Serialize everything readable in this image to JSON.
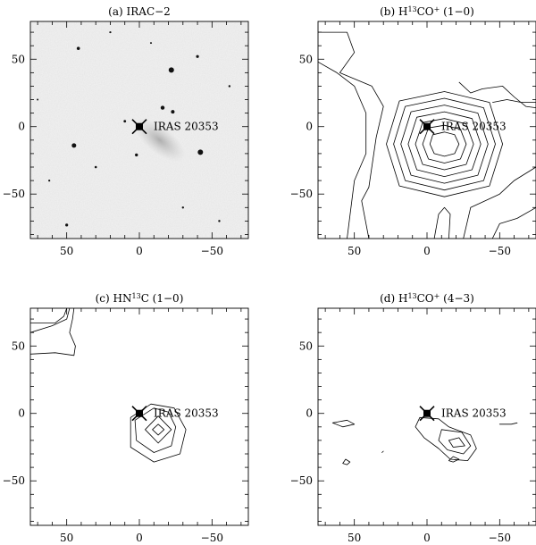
{
  "chart_data": [
    {
      "type": "image",
      "title": "(a) IRAC−2",
      "xlim": [
        75,
        -75
      ],
      "ylim": [
        -83,
        78
      ],
      "xticks": [
        "50",
        "0",
        "−50"
      ],
      "yticks": [
        "50",
        "0",
        "−50"
      ],
      "source": {
        "label": "IRAS 20353",
        "x": 0,
        "y": 0
      },
      "stars": [
        {
          "x": 45,
          "y": -14,
          "r": 2.5
        },
        {
          "x": -22,
          "y": 42,
          "r": 3
        },
        {
          "x": -42,
          "y": -19,
          "r": 3
        },
        {
          "x": -16,
          "y": 14,
          "r": 2.2
        },
        {
          "x": -23,
          "y": 11,
          "r": 2
        },
        {
          "x": -40,
          "y": 52,
          "r": 1.6
        },
        {
          "x": 50,
          "y": -73,
          "r": 1.6
        },
        {
          "x": 2,
          "y": -21,
          "r": 1.7
        },
        {
          "x": 42,
          "y": 58,
          "r": 1.8
        },
        {
          "x": 30,
          "y": -30,
          "r": 1.3
        },
        {
          "x": 10,
          "y": 4,
          "r": 1.4
        },
        {
          "x": -62,
          "y": 30,
          "r": 1.2
        },
        {
          "x": 62,
          "y": -40,
          "r": 1.1
        },
        {
          "x": -30,
          "y": -60,
          "r": 1.2
        },
        {
          "x": 20,
          "y": 70,
          "r": 1.1
        },
        {
          "x": -55,
          "y": -70,
          "r": 1.2
        },
        {
          "x": 70,
          "y": 20,
          "r": 1.0
        },
        {
          "x": -8,
          "y": 62,
          "r": 1.0
        }
      ]
    },
    {
      "type": "contour",
      "title": "(b) H{13}CO{+} (1−0)",
      "xlim": [
        75,
        -75
      ],
      "ylim": [
        -83,
        78
      ],
      "xticks": [
        "50",
        "0",
        "−50"
      ],
      "yticks": [
        "50",
        "0",
        "−50"
      ],
      "source": {
        "label": "IRAS 20353",
        "x": 0,
        "y": 0
      },
      "peak": {
        "x": -12,
        "y": -13
      },
      "contours": [
        [
          [
            -12,
            -4
          ],
          [
            -4,
            -6
          ],
          [
            -2,
            -13
          ],
          [
            -5,
            -20
          ],
          [
            -12,
            -22
          ],
          [
            -19,
            -20
          ],
          [
            -22,
            -13
          ],
          [
            -19,
            -6
          ]
        ],
        [
          [
            -12,
            1
          ],
          [
            -1,
            -1
          ],
          [
            3,
            -13
          ],
          [
            -1,
            -24
          ],
          [
            -12,
            -27
          ],
          [
            -23,
            -24
          ],
          [
            -27,
            -13
          ],
          [
            -23,
            -2
          ]
        ],
        [
          [
            -12,
            6
          ],
          [
            3,
            3
          ],
          [
            8,
            -13
          ],
          [
            3,
            -28
          ],
          [
            -12,
            -32
          ],
          [
            -27,
            -28
          ],
          [
            -32,
            -13
          ],
          [
            -27,
            2
          ]
        ],
        [
          [
            -12,
            11
          ],
          [
            7,
            7
          ],
          [
            13,
            -13
          ],
          [
            7,
            -32
          ],
          [
            -12,
            -37
          ],
          [
            -31,
            -32
          ],
          [
            -37,
            -13
          ],
          [
            -31,
            6
          ]
        ],
        [
          [
            -12,
            16
          ],
          [
            11,
            11
          ],
          [
            18,
            -13
          ],
          [
            11,
            -36
          ],
          [
            -12,
            -42
          ],
          [
            -35,
            -36
          ],
          [
            -42,
            -13
          ],
          [
            -35,
            10
          ]
        ],
        [
          [
            -12,
            21
          ],
          [
            15,
            15
          ],
          [
            23,
            -13
          ],
          [
            15,
            -40
          ],
          [
            -12,
            -47
          ],
          [
            -39,
            -40
          ],
          [
            -47,
            -13
          ],
          [
            -39,
            14
          ]
        ],
        [
          [
            -12,
            26
          ],
          [
            19,
            19
          ],
          [
            28,
            -13
          ],
          [
            19,
            -44
          ],
          [
            -12,
            -52
          ],
          [
            -43,
            -44
          ],
          [
            -52,
            -13
          ],
          [
            -43,
            18
          ]
        ],
        [
          [
            75,
            70
          ],
          [
            55,
            70
          ],
          [
            50,
            55
          ],
          [
            60,
            40
          ],
          [
            38,
            30
          ],
          [
            30,
            15
          ],
          [
            35,
            -8
          ],
          [
            40,
            -45
          ],
          [
            45,
            -55
          ],
          [
            40,
            -83
          ]
        ],
        [
          [
            75,
            48
          ],
          [
            62,
            40
          ],
          [
            50,
            30
          ],
          [
            42,
            10
          ],
          [
            42,
            -20
          ],
          [
            50,
            -40
          ],
          [
            55,
            -83
          ]
        ],
        [
          [
            -75,
            -30
          ],
          [
            -60,
            -40
          ],
          [
            -50,
            -50
          ],
          [
            -40,
            -55
          ],
          [
            -30,
            -60
          ],
          [
            -25,
            -83
          ]
        ],
        [
          [
            -75,
            -60
          ],
          [
            -62,
            -68
          ],
          [
            -50,
            -72
          ],
          [
            -45,
            -83
          ]
        ],
        [
          [
            -5,
            -83
          ],
          [
            -8,
            -65
          ],
          [
            -12,
            -60
          ],
          [
            -16,
            -65
          ],
          [
            -15,
            -83
          ]
        ],
        [
          [
            -22,
            33
          ],
          [
            -30,
            25
          ],
          [
            -38,
            28
          ],
          [
            -52,
            30
          ],
          [
            -60,
            22
          ],
          [
            -68,
            15
          ],
          [
            -75,
            14
          ]
        ],
        [
          [
            -45,
            18
          ],
          [
            -55,
            20
          ],
          [
            -65,
            18
          ],
          [
            -75,
            18
          ]
        ]
      ]
    },
    {
      "type": "contour",
      "title": "(c) HN{13}C (1−0)",
      "xlim": [
        75,
        -75
      ],
      "ylim": [
        -83,
        78
      ],
      "xticks": [
        "50",
        "0",
        "−50"
      ],
      "yticks": [
        "50",
        "0",
        "−50"
      ],
      "source": {
        "label": "IRAS 20353",
        "x": 0,
        "y": 0
      },
      "peak": {
        "x": -13,
        "y": -12
      },
      "contours": [
        [
          [
            -13,
            -8
          ],
          [
            -9,
            -12
          ],
          [
            -13,
            -16
          ],
          [
            -17,
            -12
          ]
        ],
        [
          [
            -13,
            -2
          ],
          [
            -4,
            -12
          ],
          [
            -13,
            -22
          ],
          [
            -22,
            -12
          ]
        ],
        [
          [
            -10,
            4
          ],
          [
            3,
            -5
          ],
          [
            2,
            -20
          ],
          [
            -10,
            -29
          ],
          [
            -22,
            -24
          ],
          [
            -25,
            -10
          ],
          [
            -20,
            1
          ]
        ],
        [
          [
            -8,
            7
          ],
          [
            6,
            -3
          ],
          [
            6,
            -25
          ],
          [
            -10,
            -36
          ],
          [
            -28,
            -30
          ],
          [
            -32,
            -12
          ],
          [
            -24,
            4
          ]
        ],
        [
          [
            75,
            60
          ],
          [
            60,
            65
          ],
          [
            50,
            70
          ],
          [
            48,
            78
          ]
        ],
        [
          [
            75,
            44
          ],
          [
            58,
            45
          ],
          [
            45,
            43
          ],
          [
            44,
            50
          ],
          [
            48,
            60
          ],
          [
            46,
            70
          ],
          [
            45,
            78
          ]
        ],
        [
          [
            75,
            67
          ],
          [
            58,
            67
          ],
          [
            52,
            72
          ],
          [
            50,
            78
          ]
        ]
      ]
    },
    {
      "type": "contour",
      "title": "(d) H{13}CO{+} (4−3)",
      "xlim": [
        75,
        -75
      ],
      "ylim": [
        -83,
        78
      ],
      "xticks": [
        "50",
        "0",
        "−50"
      ],
      "yticks": [
        "50",
        "0",
        "−50"
      ],
      "source": {
        "label": "IRAS 20353",
        "x": 0,
        "y": 0
      },
      "peak": {
        "x": -20,
        "y": -22
      },
      "contours": [
        [
          [
            -15,
            -20
          ],
          [
            -22,
            -18
          ],
          [
            -26,
            -24
          ],
          [
            -18,
            -25
          ]
        ],
        [
          [
            -10,
            -12
          ],
          [
            -24,
            -14
          ],
          [
            -30,
            -24
          ],
          [
            -25,
            -30
          ],
          [
            -14,
            -27
          ],
          [
            -8,
            -20
          ]
        ],
        [
          [
            5,
            -3
          ],
          [
            -8,
            -4
          ],
          [
            -15,
            -10
          ],
          [
            -30,
            -16
          ],
          [
            -34,
            -26
          ],
          [
            -28,
            -35
          ],
          [
            -16,
            -34
          ],
          [
            -8,
            -26
          ],
          [
            2,
            -18
          ],
          [
            8,
            -10
          ]
        ],
        [
          [
            58,
            -37
          ],
          [
            56,
            -34
          ],
          [
            53,
            -36
          ],
          [
            55,
            -38
          ]
        ],
        [
          [
            -15,
            -35
          ],
          [
            -18,
            -32
          ],
          [
            -22,
            -34
          ],
          [
            -18,
            -36
          ]
        ],
        [
          [
            -50,
            -8
          ],
          [
            -58,
            -8
          ],
          [
            -62,
            -7
          ],
          [
            -58,
            -8
          ]
        ],
        [
          [
            65,
            -7
          ],
          [
            55,
            -5
          ],
          [
            50,
            -8
          ],
          [
            58,
            -10
          ]
        ],
        [
          [
            30,
            -28
          ],
          [
            31,
            -29
          ]
        ]
      ]
    }
  ]
}
